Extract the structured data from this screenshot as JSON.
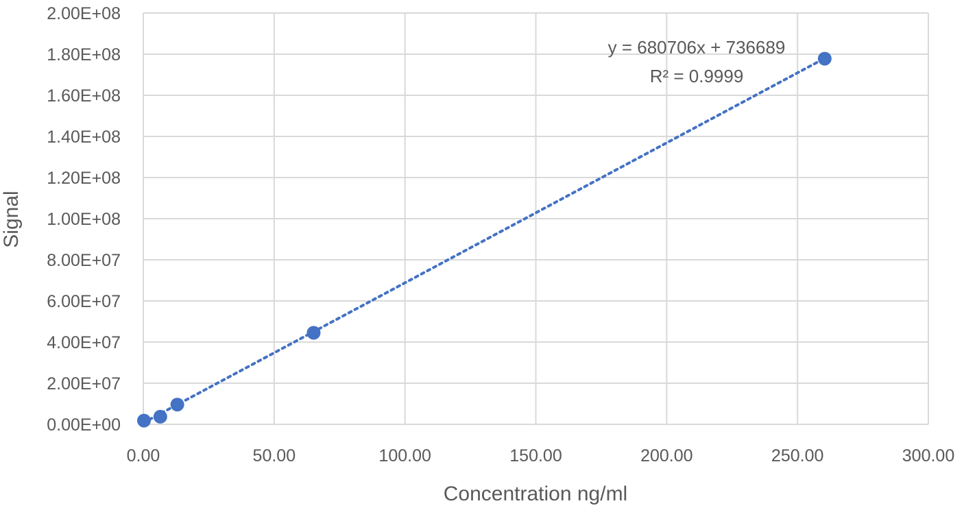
{
  "chart_data": {
    "type": "scatter",
    "title": "",
    "xlabel": "Concentration ng/ml",
    "ylabel": "Signal",
    "xlim": [
      0,
      300
    ],
    "ylim": [
      0,
      200000000
    ],
    "x_ticks": [
      "0.00",
      "50.00",
      "100.00",
      "150.00",
      "200.00",
      "250.00",
      "300.00"
    ],
    "y_ticks": [
      "0.00E+00",
      "2.00E+07",
      "4.00E+07",
      "6.00E+07",
      "8.00E+07",
      "1.00E+08",
      "1.20E+08",
      "1.40E+08",
      "1.60E+08",
      "1.80E+08",
      "2.00E+08"
    ],
    "grid": true,
    "legend": "none",
    "series": [
      {
        "color": "#4472C4",
        "points": [
          {
            "x": 0.26,
            "y": 1800000
          },
          {
            "x": 6.5,
            "y": 3700000
          },
          {
            "x": 13.0,
            "y": 9600000
          },
          {
            "x": 65.1,
            "y": 44500000
          },
          {
            "x": 260.4,
            "y": 177800000
          }
        ]
      }
    ],
    "trendline": {
      "type": "linear",
      "style": "dotted",
      "color": "#4472C4",
      "slope": 680706,
      "intercept": 736689,
      "x_range": [
        0,
        260.4
      ]
    },
    "annotations": [
      {
        "text": "y = 680706x + 736689"
      },
      {
        "text": "R² = 0.9999"
      }
    ]
  }
}
